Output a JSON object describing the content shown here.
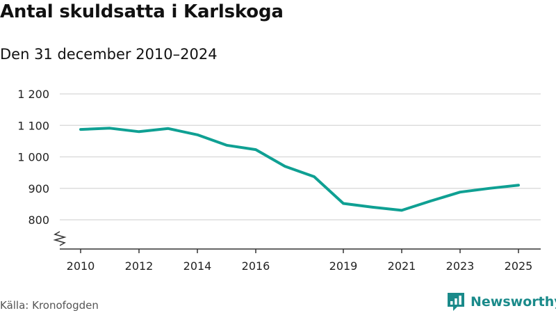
{
  "title": "Antal skuldsatta i Karlskoga",
  "subtitle": "Den 31 december 2010–2024",
  "source": "Källa: Kronofogden",
  "brand": {
    "name": "Newsworthy",
    "icon": "bar-chart-speech-bubble-icon",
    "color": "#1a8a8a"
  },
  "chart_data": {
    "type": "line",
    "title": "Antal skuldsatta i Karlskoga",
    "subtitle": "Den 31 december 2010–2024",
    "xlabel": "",
    "ylabel": "",
    "x": [
      2010,
      2011,
      2012,
      2013,
      2014,
      2015,
      2016,
      2017,
      2018,
      2019,
      2020,
      2021,
      2022,
      2023,
      2024,
      2025
    ],
    "series": [
      {
        "values": [
          1087,
          1091,
          1080,
          1090,
          1070,
          1037,
          1023,
          970,
          937,
          852,
          840,
          830,
          860,
          888,
          900,
          910
        ],
        "color": "#0fa093"
      }
    ],
    "x_ticks": [
      2010,
      2012,
      2014,
      2016,
      2019,
      2021,
      2023,
      2025
    ],
    "x_tick_labels": [
      "2010",
      "2012",
      "2014",
      "2016",
      "2019",
      "2021",
      "2023",
      "2025"
    ],
    "y_ticks": [
      800,
      900,
      1000,
      1100,
      1200
    ],
    "y_tick_labels": [
      "800",
      "900",
      "1 000",
      "1 100",
      "1 200"
    ],
    "ylim": [
      700,
      1200
    ],
    "xlim": [
      2010,
      2025
    ],
    "axis_break": true,
    "grid": true,
    "legend": "none",
    "colors": {
      "line": "#0fa093",
      "grid": "#dddddd",
      "axis": "#333333"
    }
  }
}
